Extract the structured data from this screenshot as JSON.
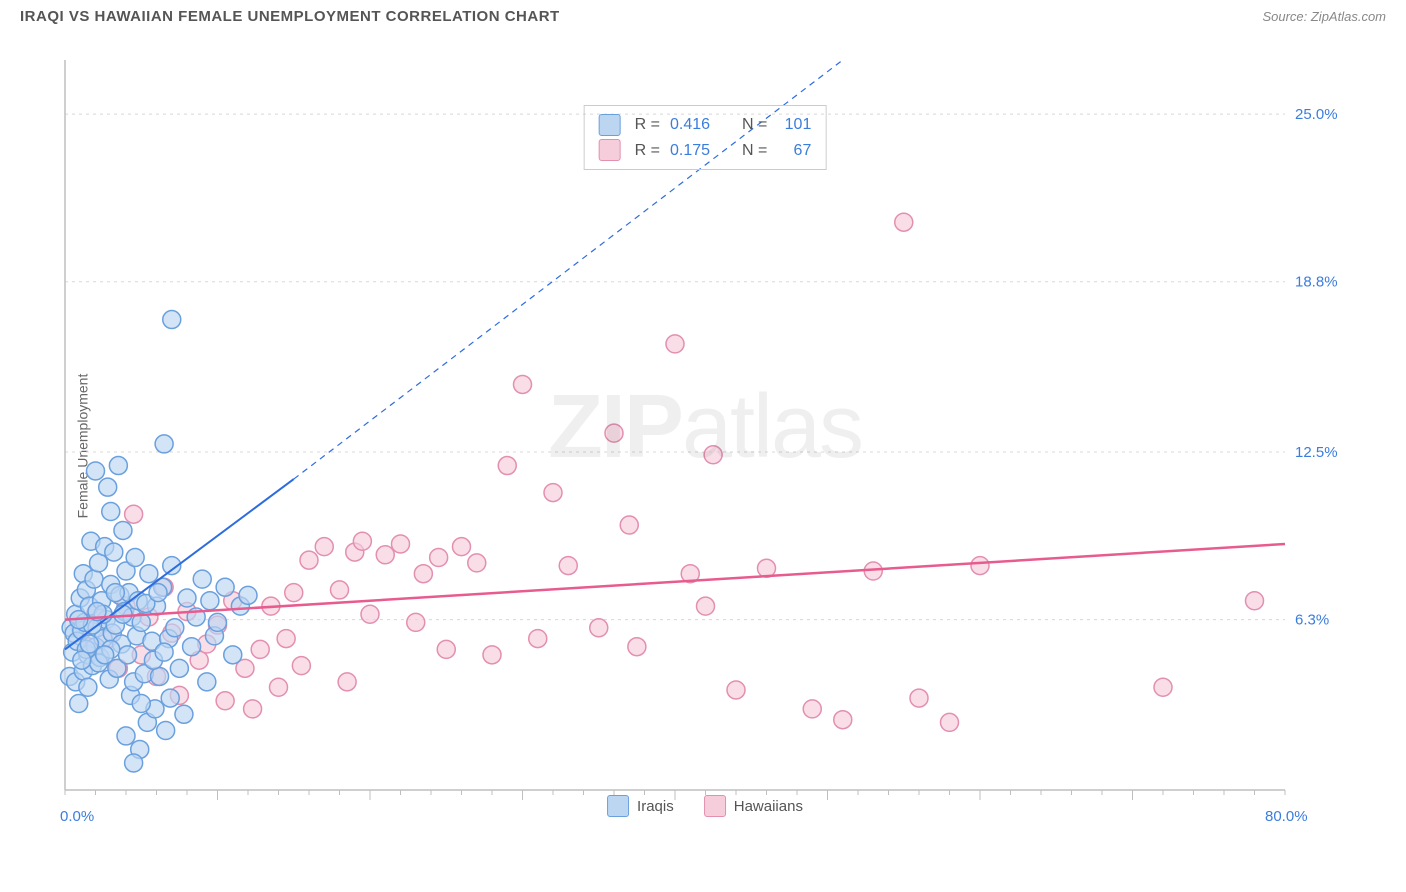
{
  "header": {
    "title": "IRAQI VS HAWAIIAN FEMALE UNEMPLOYMENT CORRELATION CHART",
    "source": "Source: ZipAtlas.com"
  },
  "y_axis_label": "Female Unemployment",
  "watermark": {
    "bold": "ZIP",
    "rest": "atlas"
  },
  "chart": {
    "type": "scatter",
    "xlim": [
      0,
      80
    ],
    "ylim": [
      0,
      27
    ],
    "x_min_label": "0.0%",
    "x_max_label": "80.0%",
    "x_label_color": "#3b7ddd",
    "y_ticks": [
      {
        "value": 6.3,
        "label": "6.3%"
      },
      {
        "value": 12.5,
        "label": "12.5%"
      },
      {
        "value": 18.8,
        "label": "18.8%"
      },
      {
        "value": 25.0,
        "label": "25.0%"
      }
    ],
    "x_major_ticks": [
      10,
      20,
      30,
      40,
      50,
      60,
      70
    ],
    "x_minor_step": 2,
    "grid_color": "#d8d8d8",
    "axis_color": "#bfbfbf",
    "background_color": "#ffffff",
    "marker_radius": 9,
    "marker_stroke_width": 1.5,
    "series": {
      "iraqis": {
        "label": "Iraqis",
        "fill_color": "#bcd6f2",
        "stroke_color": "#6aa0de",
        "r": "0.416",
        "n": "101",
        "trend": {
          "solid": {
            "x1": 0,
            "y1": 5.2,
            "x2": 15,
            "y2": 11.5
          },
          "dashed": {
            "x1": 15,
            "y1": 11.5,
            "x2": 51,
            "y2": 27
          },
          "color": "#2d6cdf",
          "width": 2
        },
        "points": [
          [
            0.3,
            4.2
          ],
          [
            0.4,
            6.0
          ],
          [
            0.5,
            5.1
          ],
          [
            0.6,
            5.8
          ],
          [
            0.7,
            4.0
          ],
          [
            0.7,
            6.5
          ],
          [
            0.8,
            5.5
          ],
          [
            0.9,
            3.2
          ],
          [
            1.0,
            7.1
          ],
          [
            1.1,
            5.9
          ],
          [
            1.2,
            4.4
          ],
          [
            1.2,
            8.0
          ],
          [
            1.3,
            6.2
          ],
          [
            1.4,
            7.4
          ],
          [
            1.5,
            3.8
          ],
          [
            1.5,
            5.0
          ],
          [
            1.6,
            6.8
          ],
          [
            1.7,
            9.2
          ],
          [
            1.8,
            4.6
          ],
          [
            1.9,
            7.8
          ],
          [
            2.0,
            5.3
          ],
          [
            2.0,
            11.8
          ],
          [
            2.1,
            6.0
          ],
          [
            2.2,
            8.4
          ],
          [
            2.3,
            4.9
          ],
          [
            2.4,
            7.0
          ],
          [
            2.5,
            5.6
          ],
          [
            2.6,
            9.0
          ],
          [
            2.7,
            6.3
          ],
          [
            2.8,
            11.2
          ],
          [
            2.9,
            4.1
          ],
          [
            3.0,
            7.6
          ],
          [
            3.0,
            10.3
          ],
          [
            3.1,
            5.8
          ],
          [
            3.2,
            8.8
          ],
          [
            3.3,
            6.1
          ],
          [
            3.4,
            4.5
          ],
          [
            3.5,
            12.0
          ],
          [
            3.6,
            7.2
          ],
          [
            3.7,
            5.4
          ],
          [
            3.8,
            9.6
          ],
          [
            3.9,
            6.6
          ],
          [
            4.0,
            2.0
          ],
          [
            4.0,
            8.1
          ],
          [
            4.1,
            5.0
          ],
          [
            4.2,
            7.3
          ],
          [
            4.3,
            3.5
          ],
          [
            4.4,
            6.4
          ],
          [
            4.5,
            4.0
          ],
          [
            4.6,
            8.6
          ],
          [
            4.7,
            5.7
          ],
          [
            4.8,
            7.0
          ],
          [
            4.9,
            1.5
          ],
          [
            5.0,
            6.2
          ],
          [
            5.2,
            4.3
          ],
          [
            5.4,
            2.5
          ],
          [
            5.5,
            8.0
          ],
          [
            5.7,
            5.5
          ],
          [
            5.9,
            3.0
          ],
          [
            6.0,
            6.8
          ],
          [
            6.2,
            4.2
          ],
          [
            6.4,
            7.5
          ],
          [
            6.6,
            2.2
          ],
          [
            6.8,
            5.6
          ],
          [
            7.0,
            8.3
          ],
          [
            4.5,
            1.0
          ],
          [
            5.0,
            3.2
          ],
          [
            5.3,
            6.9
          ],
          [
            5.8,
            4.8
          ],
          [
            6.1,
            7.3
          ],
          [
            6.5,
            5.1
          ],
          [
            6.9,
            3.4
          ],
          [
            7.2,
            6.0
          ],
          [
            7.5,
            4.5
          ],
          [
            7.8,
            2.8
          ],
          [
            8.0,
            7.1
          ],
          [
            8.3,
            5.3
          ],
          [
            8.6,
            6.4
          ],
          [
            9.0,
            7.8
          ],
          [
            9.3,
            4.0
          ],
          [
            9.5,
            7.0
          ],
          [
            9.8,
            5.7
          ],
          [
            10.0,
            6.2
          ],
          [
            10.5,
            7.5
          ],
          [
            11.0,
            5.0
          ],
          [
            11.5,
            6.8
          ],
          [
            12.0,
            7.2
          ],
          [
            6.5,
            12.8
          ],
          [
            7.0,
            17.4
          ],
          [
            2.5,
            6.5
          ],
          [
            3.0,
            5.2
          ],
          [
            2.2,
            4.7
          ],
          [
            1.8,
            6.1
          ],
          [
            1.4,
            5.2
          ],
          [
            0.9,
            6.3
          ],
          [
            1.1,
            4.8
          ],
          [
            1.6,
            5.4
          ],
          [
            2.1,
            6.6
          ],
          [
            2.6,
            5.0
          ],
          [
            3.3,
            7.3
          ],
          [
            3.8,
            6.5
          ]
        ]
      },
      "hawaiians": {
        "label": "Hawaiians",
        "fill_color": "#f6cddb",
        "stroke_color": "#e38fb0",
        "r": "0.175",
        "n": "67",
        "trend": {
          "solid": {
            "x1": 0,
            "y1": 6.3,
            "x2": 80,
            "y2": 9.1
          },
          "color": "#e85b8f",
          "width": 2.5
        },
        "points": [
          [
            1.0,
            6.0
          ],
          [
            1.5,
            5.3
          ],
          [
            2.0,
            6.5
          ],
          [
            2.8,
            5.6
          ],
          [
            3.5,
            4.5
          ],
          [
            4.0,
            6.8
          ],
          [
            4.5,
            10.2
          ],
          [
            5.0,
            5.0
          ],
          [
            5.5,
            6.4
          ],
          [
            6.0,
            4.2
          ],
          [
            6.5,
            7.5
          ],
          [
            7.0,
            5.8
          ],
          [
            7.5,
            3.5
          ],
          [
            8.0,
            6.6
          ],
          [
            8.8,
            4.8
          ],
          [
            9.3,
            5.4
          ],
          [
            10.0,
            6.1
          ],
          [
            10.5,
            3.3
          ],
          [
            11.0,
            7.0
          ],
          [
            11.8,
            4.5
          ],
          [
            12.3,
            3.0
          ],
          [
            12.8,
            5.2
          ],
          [
            13.5,
            6.8
          ],
          [
            14.0,
            3.8
          ],
          [
            14.5,
            5.6
          ],
          [
            15.0,
            7.3
          ],
          [
            15.5,
            4.6
          ],
          [
            16.0,
            8.5
          ],
          [
            17.0,
            9.0
          ],
          [
            18.0,
            7.4
          ],
          [
            18.5,
            4.0
          ],
          [
            19.0,
            8.8
          ],
          [
            19.5,
            9.2
          ],
          [
            20.0,
            6.5
          ],
          [
            21.0,
            8.7
          ],
          [
            22.0,
            9.1
          ],
          [
            23.0,
            6.2
          ],
          [
            23.5,
            8.0
          ],
          [
            24.5,
            8.6
          ],
          [
            25.0,
            5.2
          ],
          [
            26.0,
            9.0
          ],
          [
            27.0,
            8.4
          ],
          [
            28.0,
            5.0
          ],
          [
            29.0,
            12.0
          ],
          [
            30.0,
            15.0
          ],
          [
            31.0,
            5.6
          ],
          [
            32.0,
            11.0
          ],
          [
            33.0,
            8.3
          ],
          [
            35.0,
            6.0
          ],
          [
            36.0,
            13.2
          ],
          [
            37.0,
            9.8
          ],
          [
            37.5,
            5.3
          ],
          [
            40.0,
            16.5
          ],
          [
            41.0,
            8.0
          ],
          [
            42.0,
            6.8
          ],
          [
            42.5,
            12.4
          ],
          [
            44.0,
            3.7
          ],
          [
            46.0,
            8.2
          ],
          [
            49.0,
            3.0
          ],
          [
            51.0,
            2.6
          ],
          [
            53.0,
            8.1
          ],
          [
            55.0,
            21.0
          ],
          [
            56.0,
            3.4
          ],
          [
            58.0,
            2.5
          ],
          [
            60.0,
            8.3
          ],
          [
            72.0,
            3.8
          ],
          [
            78.0,
            7.0
          ]
        ]
      }
    }
  },
  "legend_top": {
    "r_label": "R =",
    "n_label": "N ="
  }
}
